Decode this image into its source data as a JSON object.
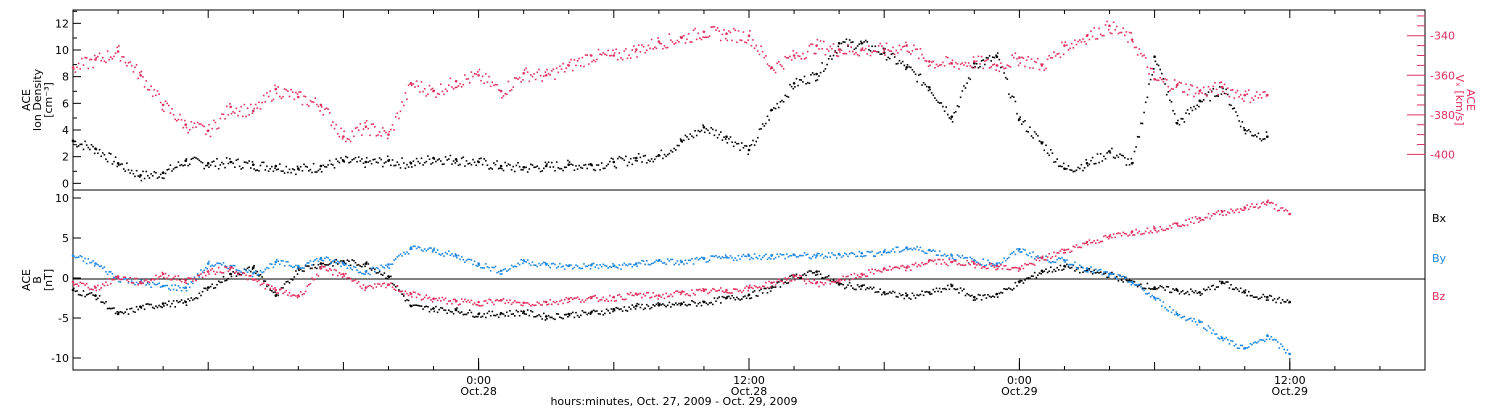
{
  "colors": {
    "black": "#000000",
    "pink": "#e0305f",
    "blue": "#1f87e0"
  },
  "chart_data": [
    {
      "type": "scatter",
      "panel": "top",
      "ylabel_left": [
        "ACE",
        "Ion Density",
        "[cm⁻³]"
      ],
      "ylabel_right": [
        "ACE",
        "Vₓ [km/s]"
      ],
      "ylim_left": [
        -0.5,
        13
      ],
      "ylim_right": [
        -418,
        -327
      ],
      "yticks_left": [
        "0",
        "2",
        "4",
        "6",
        "8",
        "10",
        "12"
      ],
      "yticks_right": [
        "-340",
        "-360",
        "-380",
        "-400"
      ],
      "series": [
        {
          "axis": "left",
          "color": "black",
          "x_hours": [
            0,
            1,
            2,
            3,
            4,
            5,
            6,
            7,
            8,
            9,
            10,
            11,
            12,
            13,
            14,
            15,
            16,
            17,
            18,
            19,
            20,
            21,
            22,
            23,
            24,
            25,
            26,
            27,
            28,
            29,
            30,
            31,
            32,
            33,
            34,
            35,
            36,
            37,
            38,
            39,
            40,
            41,
            42,
            43,
            44,
            45,
            46,
            47,
            48,
            49,
            50,
            51,
            52,
            53,
            54,
            55,
            56,
            57,
            58,
            59,
            60
          ],
          "values": [
            3.2,
            2.6,
            1.5,
            0.6,
            0.8,
            1.7,
            1.5,
            1.6,
            1.4,
            1.3,
            1.1,
            1.3,
            1.7,
            1.6,
            1.7,
            1.5,
            1.9,
            1.8,
            1.6,
            1.3,
            1.2,
            1.3,
            1.4,
            1.4,
            1.6,
            1.9,
            2.1,
            3.2,
            4.2,
            3.5,
            2.5,
            5.5,
            7.5,
            8.2,
            10.5,
            10.5,
            9.8,
            8.7,
            7.2,
            5.0,
            9.0,
            9.5,
            4.8,
            3.0,
            1.1,
            1.5,
            2.4,
            1.5,
            9.5,
            4.5,
            6.2,
            7.2,
            4.0,
            3.5,
            null,
            null,
            null,
            null,
            null,
            null,
            null
          ]
        },
        {
          "axis": "right",
          "color": "pink",
          "x_hours": [
            0,
            1,
            2,
            3,
            4,
            5,
            6,
            7,
            8,
            9,
            10,
            11,
            12,
            13,
            14,
            15,
            16,
            17,
            18,
            19,
            20,
            21,
            22,
            23,
            24,
            25,
            26,
            27,
            28,
            29,
            30,
            31,
            32,
            33,
            34,
            35,
            36,
            37,
            38,
            39,
            40,
            41,
            42,
            43,
            44,
            45,
            46,
            47,
            48,
            49,
            50,
            51,
            52,
            53,
            54,
            55,
            56,
            57,
            58,
            59,
            60
          ],
          "values": [
            -356,
            -352,
            -348,
            -360,
            -375,
            -385,
            -388,
            -376,
            -378,
            -367,
            -371,
            -375,
            -391,
            -386,
            -390,
            -364,
            -368,
            -363,
            -360,
            -368,
            -359,
            -360,
            -355,
            -350,
            -350,
            -347,
            -343,
            -341,
            -338,
            -339,
            -340,
            -356,
            -350,
            -345,
            -347,
            -347,
            -347,
            -345,
            -353,
            -354,
            -353,
            -355,
            -351,
            -355,
            -345,
            -340,
            -335,
            -342,
            -362,
            -365,
            -368,
            -366,
            -370,
            -370,
            null,
            null,
            null,
            null,
            null,
            null,
            null
          ]
        }
      ]
    },
    {
      "type": "scatter",
      "panel": "bottom",
      "ylabel_left": [
        "ACE",
        "B",
        "[nT]"
      ],
      "ylim": [
        -11.5,
        11
      ],
      "yticks": [
        "10",
        "5",
        "0",
        "-5",
        "-10"
      ],
      "xticks": [
        {
          "time": "0:00",
          "date": "Oct.28",
          "hour": 18
        },
        {
          "time": "12:00",
          "date": "Oct.28",
          "hour": 30
        },
        {
          "time": "0:00",
          "date": "Oct.29",
          "hour": 42
        },
        {
          "time": "12:00",
          "date": "Oct.29",
          "hour": 54
        }
      ],
      "xlim_hours": [
        0,
        60
      ],
      "xlabel": "hours:minutes, Oct. 27, 2009 - Oct. 29, 2009",
      "legend": [
        "Bx",
        "By",
        "Bz"
      ],
      "series": [
        {
          "name": "Bx",
          "color": "black",
          "x_hours": [
            0,
            1,
            2,
            3,
            4,
            5,
            6,
            7,
            8,
            9,
            10,
            11,
            12,
            13,
            14,
            15,
            16,
            17,
            18,
            19,
            20,
            21,
            22,
            23,
            24,
            25,
            26,
            27,
            28,
            29,
            30,
            31,
            32,
            33,
            34,
            35,
            36,
            37,
            38,
            39,
            40,
            41,
            42,
            43,
            44,
            45,
            46,
            47,
            48,
            49,
            50,
            51,
            52,
            53,
            54
          ],
          "values": [
            -1.5,
            -2.2,
            -4.5,
            -3.6,
            -3.2,
            -3,
            -1.2,
            0.5,
            1.3,
            -2.2,
            1.2,
            1.8,
            2.1,
            1.8,
            0.2,
            -3.5,
            -3.8,
            -4,
            -4.5,
            -4.4,
            -4.2,
            -4.8,
            -4.5,
            -4.3,
            -3.9,
            -3.5,
            -3.4,
            -3.2,
            -3.0,
            -2.5,
            -2.1,
            -1.2,
            0.3,
            0.8,
            -0.8,
            -1.0,
            -1.8,
            -2.2,
            -1.8,
            -1.0,
            -2.4,
            -2.0,
            -0.5,
            0.9,
            1.5,
            0.9,
            0.5,
            -0.5,
            -1.2,
            -1.5,
            -1.8,
            -0.5,
            -1.8,
            -2.4,
            -3.0
          ]
        },
        {
          "name": "By",
          "color": "blue",
          "x_hours": [
            0,
            1,
            2,
            3,
            4,
            5,
            6,
            7,
            8,
            9,
            10,
            11,
            12,
            13,
            14,
            15,
            16,
            17,
            18,
            19,
            20,
            21,
            22,
            23,
            24,
            25,
            26,
            27,
            28,
            29,
            30,
            31,
            32,
            33,
            34,
            35,
            36,
            37,
            38,
            39,
            40,
            41,
            42,
            43,
            44,
            45,
            46,
            47,
            48,
            49,
            50,
            51,
            52,
            53,
            54
          ],
          "values": [
            2.8,
            1.8,
            0,
            -0.5,
            -1,
            -1.2,
            1.8,
            1.5,
            0.6,
            2.0,
            1.5,
            2.5,
            1.8,
            0.8,
            1.7,
            3.8,
            3.5,
            2.8,
            1.8,
            0.9,
            2.2,
            1.7,
            1.5,
            1.6,
            1.5,
            1.8,
            2.2,
            2.0,
            2.4,
            2.6,
            2.8,
            2.8,
            2.9,
            2.8,
            3.0,
            3.1,
            3.3,
            3.8,
            3.5,
            2.8,
            2.2,
            1.8,
            3.6,
            2.5,
            2.2,
            1.2,
            0.5,
            -0.5,
            -2.5,
            -4.5,
            -5.5,
            -7.5,
            -8.8,
            -7.2,
            -9.5
          ]
        },
        {
          "name": "Bz",
          "color": "pink",
          "x_hours": [
            0,
            1,
            2,
            3,
            4,
            5,
            6,
            7,
            8,
            9,
            10,
            11,
            12,
            13,
            14,
            15,
            16,
            17,
            18,
            19,
            20,
            21,
            22,
            23,
            24,
            25,
            26,
            27,
            28,
            29,
            30,
            31,
            32,
            33,
            34,
            35,
            36,
            37,
            38,
            39,
            40,
            41,
            42,
            43,
            44,
            45,
            46,
            47,
            48,
            49,
            50,
            51,
            52,
            53,
            54
          ],
          "values": [
            -0.5,
            -1.2,
            0.2,
            -0.5,
            0.5,
            -0.3,
            0.8,
            1.3,
            -0.2,
            -1.5,
            -2.2,
            1.2,
            0.5,
            -1.2,
            -0.8,
            -2,
            -2.6,
            -2.9,
            -3.0,
            -2.8,
            -3.1,
            -3.0,
            -2.6,
            -2.5,
            -2.4,
            -2.0,
            -2.2,
            -1.8,
            -1.6,
            -1.5,
            -1.2,
            -0.6,
            0.2,
            -0.6,
            -0.2,
            0.5,
            1.2,
            1.3,
            2.2,
            2.0,
            1.8,
            1.5,
            1.2,
            2.5,
            3.5,
            4.5,
            5.2,
            5.8,
            6.2,
            6.8,
            7.5,
            8.3,
            8.8,
            9.5,
            8.0
          ]
        }
      ]
    }
  ]
}
